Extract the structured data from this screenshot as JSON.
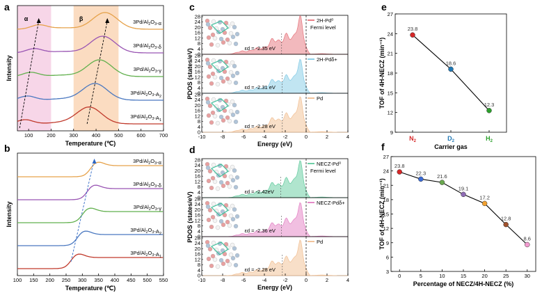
{
  "panel_labels": [
    "a",
    "b",
    "c",
    "d",
    "e",
    "f"
  ],
  "chart_data": [
    {
      "panel": "a",
      "type": "line",
      "xlabel": "Temperature (℃)",
      "ylabel": "Intensity",
      "xlim": [
        50,
        700
      ],
      "xticks": [
        "100",
        "200",
        "300",
        "400",
        "500",
        "600",
        "700"
      ],
      "series_labels": [
        "3Pd/Al2O3-α",
        "3Pd/Al2O3-δ",
        "3Pd/Al2O3-γ",
        "3Pd/Al2O3-A2",
        "3Pd/Al2O3-A1"
      ],
      "colors": [
        "#e6a24a",
        "#9955b3",
        "#62b04e",
        "#4a78c0",
        "#c0392b"
      ],
      "region_labels": [
        "α",
        "β"
      ],
      "regions": [
        {
          "range": [
            50,
            200
          ],
          "color": "#f7d6e8"
        },
        {
          "range": [
            300,
            500
          ],
          "color": "#fbdcc1"
        }
      ],
      "peaks": [
        {
          "low": 145,
          "high": 440
        },
        {
          "low": 125,
          "high": 430
        },
        {
          "low": 110,
          "high": 415
        },
        {
          "low": 95,
          "high": 395
        },
        {
          "low": 85,
          "high": 370
        }
      ]
    },
    {
      "panel": "b",
      "type": "line",
      "xlabel": "Temperature (℃)",
      "ylabel": "Intensity",
      "xlim": [
        100,
        550
      ],
      "xticks": [
        "100",
        "150",
        "200",
        "250",
        "300",
        "350",
        "400",
        "450",
        "500",
        "550"
      ],
      "series_labels": [
        "3Pd/Al2O3-α",
        "3Pd/Al2O3-δ",
        "3Pd/Al2O3-γ",
        "3Pd/Al2O3-A2",
        "3Pd/Al2O3-A1"
      ],
      "colors": [
        "#e6a24a",
        "#9955b3",
        "#62b04e",
        "#4a78c0",
        "#c0392b"
      ],
      "onsets": [
        325,
        315,
        300,
        285,
        265
      ]
    },
    {
      "panel": "c",
      "type": "area",
      "ylabel": "PDOS (states/eV)",
      "xlabel": "Energy (eV)",
      "xlim": [
        -10,
        4
      ],
      "xticks": [
        "-10",
        "-8",
        "-6",
        "-4",
        "-2",
        "0",
        "2",
        "4"
      ],
      "yticks": [
        "0",
        "4",
        "8",
        "12",
        "16",
        "20",
        "24",
        "28"
      ],
      "fermi_label": "Fermi level",
      "subpanels": [
        {
          "legend": "2H-Pd⁰",
          "ed_label": "εd = -2.35 eV",
          "ed": -2.35,
          "color": "#e87f86",
          "peak": 25
        },
        {
          "legend": "2H-Pdδ+",
          "ed_label": "εd = -2.31 eV",
          "ed": -2.31,
          "color": "#8ecfe8",
          "peak": 22
        },
        {
          "legend": "Pd",
          "ed_label": "εd = -2.28 eV",
          "ed": -2.28,
          "color": "#f2c49b",
          "peak": 23
        }
      ]
    },
    {
      "panel": "d",
      "type": "area",
      "ylabel": "PDOS (states/eV)",
      "xlabel": "Energy (eV)",
      "xlim": [
        -10,
        4
      ],
      "xticks": [
        "-10",
        "-8",
        "-6",
        "-4",
        "-2",
        "0",
        "2",
        "4"
      ],
      "yticks": [
        "0",
        "4",
        "8",
        "12",
        "16",
        "20",
        "24",
        "28"
      ],
      "fermi_label": "Fermi level",
      "subpanels": [
        {
          "legend": "NECZ-Pd⁰",
          "ed_label": "εd = -2.42eV",
          "ed": -2.42,
          "color": "#6fcfa6",
          "peak": 24
        },
        {
          "legend": "NECZ-Pdδ+",
          "ed_label": "εd = -2.36 eV",
          "ed": -2.36,
          "color": "#e58ac8",
          "peak": 22
        },
        {
          "legend": "Pd",
          "ed_label": "εd = -2.28 eV",
          "ed": -2.28,
          "color": "#f2c49b",
          "peak": 23
        }
      ]
    },
    {
      "panel": "e",
      "type": "line",
      "xlabel": "Carrier gas",
      "ylabel": "TOF of 4H-NECZ (min⁻¹)",
      "categories": [
        "N2",
        "D2",
        "H2"
      ],
      "category_colors": [
        "#d62728",
        "#1f77b4",
        "#2ca02c"
      ],
      "values": [
        23.8,
        18.6,
        12.3
      ],
      "ylim": [
        9,
        27
      ],
      "yticks": [
        "9",
        "12",
        "15",
        "18",
        "21",
        "24",
        "27"
      ]
    },
    {
      "panel": "f",
      "type": "line",
      "xlabel": "Percentage of NECZ/4H-NECZ (%)",
      "ylabel": "TOF of 4H-NECZ (min⁻¹)",
      "x": [
        0,
        5,
        10,
        15,
        20,
        25,
        30
      ],
      "values": [
        23.8,
        22.3,
        21.6,
        19.1,
        17.2,
        12.8,
        8.6
      ],
      "point_colors": [
        "#d62728",
        "#3a6bd6",
        "#6aa84f",
        "#8e6bb4",
        "#f0a030",
        "#a0522d",
        "#f39bd0"
      ],
      "xlim": [
        -2,
        32
      ],
      "ylim": [
        3,
        27
      ],
      "xticks": [
        "0",
        "5",
        "10",
        "15",
        "20",
        "25",
        "30"
      ],
      "yticks": [
        "3",
        "6",
        "9",
        "12",
        "15",
        "18",
        "21",
        "24",
        "27"
      ]
    }
  ]
}
